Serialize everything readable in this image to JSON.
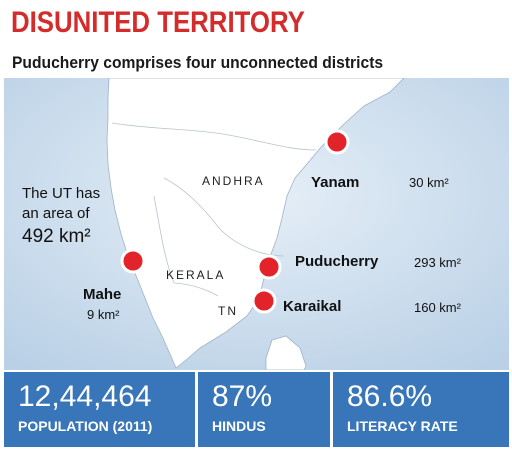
{
  "title": "DISUNITED TERRITORY",
  "subtitle": "Puducherry comprises four unconnected districts",
  "map": {
    "states": [
      "ANDHRA",
      "KERALA",
      "TN"
    ],
    "ut_note": {
      "line1": "The UT has",
      "line2": "an area of",
      "area": "492 km²"
    },
    "districts": [
      {
        "name": "Yanam",
        "area": "30 km²"
      },
      {
        "name": "Puducherry",
        "area": "293 km²"
      },
      {
        "name": "Karaikal",
        "area": "160 km²"
      },
      {
        "name": "Mahe",
        "area": "9 km²"
      }
    ],
    "colors": {
      "sea": "#cfe0ef",
      "land": "#ffffff",
      "marker": "#e2232a",
      "title": "#d42b2b"
    }
  },
  "stats": [
    {
      "value": "12,44,464",
      "label": "POPULATION (2011)"
    },
    {
      "value": "87%",
      "label": "HINDUS"
    },
    {
      "value": "86.6%",
      "label": "LITERACY RATE"
    }
  ],
  "stats_color": "#3876b9"
}
